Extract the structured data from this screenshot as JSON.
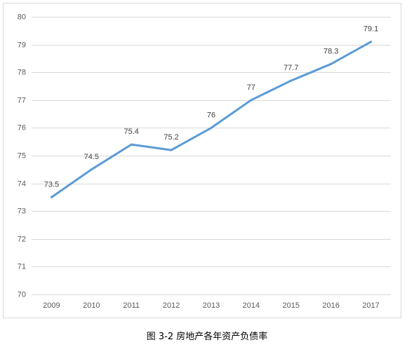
{
  "caption": "图 3-2 房地产各年资产负债率",
  "colors": {
    "series": "#5B9BD5",
    "grid": "#D9D9D9",
    "text": "#595959",
    "label_text": "#404040"
  },
  "chart_data": {
    "type": "line",
    "categories": [
      "2009",
      "2010",
      "2011",
      "2012",
      "2013",
      "2014",
      "2015",
      "2016",
      "2017"
    ],
    "series": [
      {
        "values": [
          73.5,
          74.5,
          75.4,
          75.2,
          76,
          77,
          77.7,
          78.3,
          79.1
        ]
      }
    ],
    "ylim": [
      70,
      80
    ],
    "yticks": [
      70,
      71,
      72,
      73,
      74,
      75,
      76,
      77,
      78,
      79,
      80
    ],
    "grid": true,
    "legend": "none",
    "data_labels": true
  }
}
